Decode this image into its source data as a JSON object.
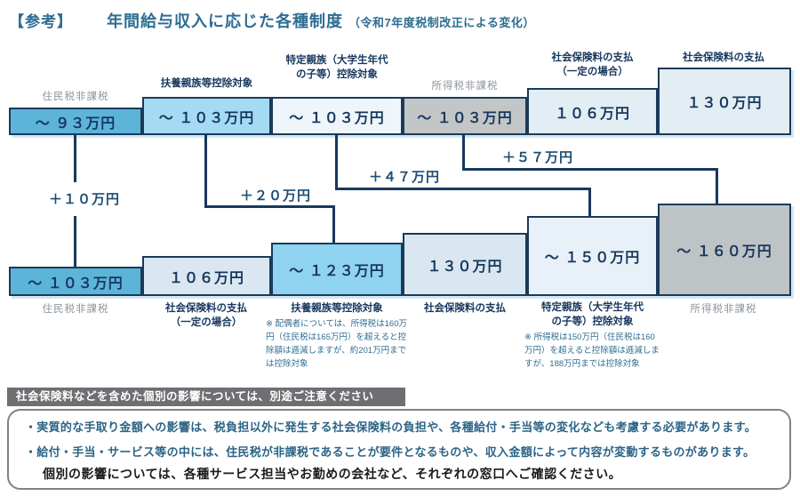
{
  "title": {
    "tag": "【参考】",
    "main": "年間給与収入に応じた各種制度",
    "sub": "（令和7年度税制改正による変化）"
  },
  "diagram": {
    "top_boxes": [
      {
        "label": "住民税非課税",
        "value": "～ ９３万円"
      },
      {
        "label": "扶養親族等控除対象",
        "value": "～ １０３万円"
      },
      {
        "label": "特定親族（大学生年代\nの子等）控除対象",
        "value": "～ １０３万円"
      },
      {
        "label": "所得税非課税",
        "value": "～ １０３万円"
      },
      {
        "label": "社会保険料の支払\n（一定の場合）",
        "value": "１０６万円"
      },
      {
        "label": "社会保険料の支払",
        "value": "１３０万円"
      }
    ],
    "bottom_boxes": [
      {
        "label": "住民税非課税",
        "value": "～ １０３万円"
      },
      {
        "label": "社会保険料の支払\n（一定の場合）",
        "value": "１０６万円"
      },
      {
        "label": "扶養親族等控除対象",
        "value": "～ １２３万円",
        "note": "※ 配偶者については、所得税は160万円（住民税は165万円）を超えると控除額は逓減しますが、約201万円までは控除対象"
      },
      {
        "label": "社会保険料の支払",
        "value": "１３０万円"
      },
      {
        "label": "特定親族（大学生年代\nの子等）控除対象",
        "value": "～ １５０万円",
        "note": "※ 所得税は150万円（住民税は160万円）を超えると控除額は逓減しますが、188万円までは控除対象"
      },
      {
        "label": "所得税非課税",
        "value": "～ １６０万円"
      }
    ],
    "deltas": [
      {
        "value": "＋１０万円"
      },
      {
        "value": "＋２０万円"
      },
      {
        "value": "＋４７万円"
      },
      {
        "value": "＋５７万円"
      }
    ]
  },
  "notice": {
    "bar": "社会保険料などを含めた個別の影響については、別途ご注意ください",
    "bullets": [
      "・実質的な手取り金額への影響は、税負担以外に発生する社会保険料の負担や、各種給付・手当等の変化なども考慮する必要があります。",
      "・給付・手当・サービス等の中には、住民税が非課税であることが要件となるものや、収入金額によって内容が変動するものがあります。"
    ],
    "footer": "個別の影響については、各種サービス担当やお勤めの会社など、それぞれの窓口へご確認ください。"
  },
  "colors": {
    "accent_navy": "#17375e",
    "title_teal": "#2e6d92",
    "blue_medium": "#5db4d9",
    "blue_light": "#a5daf3",
    "blue_sky": "#8fd3f1",
    "blue_pale": "#e3edf4",
    "blue_faint": "#eef6fb",
    "gray_box": "#c3c6c6",
    "gray_label": "#8d959c",
    "bar_gray": "#6d6f72"
  }
}
